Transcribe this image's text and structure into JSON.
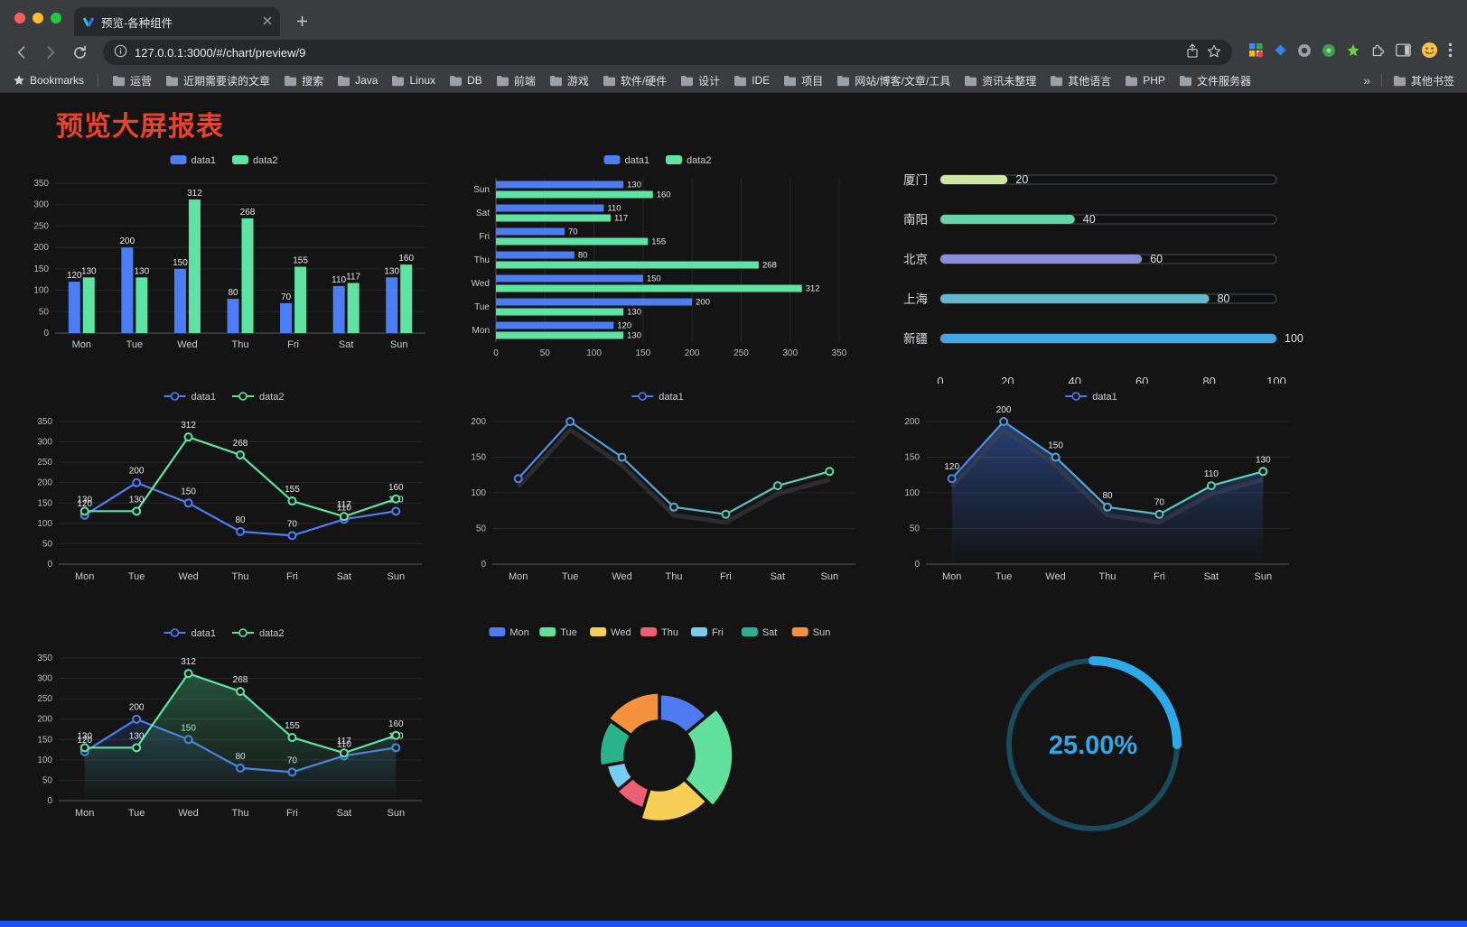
{
  "browser": {
    "tab": {
      "title": "预览-各种组件"
    },
    "url": "127.0.0.1:3000/#/chart/preview/9",
    "bookmarks_bar": {
      "label": "Bookmarks",
      "folders": [
        "运营",
        "近期需要读的文章",
        "搜索",
        "Java",
        "Linux",
        "DB",
        "前端",
        "游戏",
        "软件/硬件",
        "设计",
        "IDE",
        "项目",
        "网站/博客/文章/工具",
        "资讯未整理",
        "其他语言",
        "PHP",
        "文件服务器"
      ],
      "overflow_chevron": "»",
      "other_bookmarks": "其他书签"
    }
  },
  "page": {
    "title": "预览大屏报表",
    "accent_red": "#e8432d",
    "background": "#141414",
    "footer_color": "#1b55f7"
  },
  "chart_data": [
    {
      "type": "bar",
      "categories": [
        "Mon",
        "Tue",
        "Wed",
        "Thu",
        "Fri",
        "Sat",
        "Sun"
      ],
      "series": [
        {
          "name": "data1",
          "color": "#4d7df2",
          "values": [
            120,
            200,
            150,
            80,
            70,
            110,
            130
          ]
        },
        {
          "name": "data2",
          "color": "#5ee3a2",
          "values": [
            130,
            130,
            312,
            268,
            155,
            117,
            160
          ]
        }
      ],
      "ylim": [
        0,
        350
      ],
      "ytick_step": 50,
      "show_labels": true
    },
    {
      "type": "hbar",
      "categories": [
        "Mon",
        "Tue",
        "Wed",
        "Thu",
        "Fri",
        "Sat",
        "Sun"
      ],
      "series": [
        {
          "name": "data1",
          "color": "#4d7df2",
          "values": [
            120,
            200,
            150,
            80,
            70,
            110,
            130
          ]
        },
        {
          "name": "data2",
          "color": "#5ee3a2",
          "values": [
            130,
            130,
            312,
            268,
            155,
            117,
            160
          ]
        }
      ],
      "xlim": [
        0,
        350
      ],
      "xtick_step": 50,
      "show_labels": true
    },
    {
      "type": "progress",
      "max": 100,
      "axis_ticks": [
        0,
        20,
        40,
        60,
        80,
        100
      ],
      "items": [
        {
          "label": "厦门",
          "value": 20,
          "color": "#cfe7a6"
        },
        {
          "label": "南阳",
          "value": 40,
          "color": "#67d3a8"
        },
        {
          "label": "北京",
          "value": 60,
          "color": "#8b8fd9"
        },
        {
          "label": "上海",
          "value": 80,
          "color": "#62b9cc"
        },
        {
          "label": "新疆",
          "value": 100,
          "color": "#41a6e1"
        }
      ]
    },
    {
      "type": "line",
      "categories": [
        "Mon",
        "Tue",
        "Wed",
        "Thu",
        "Fri",
        "Sat",
        "Sun"
      ],
      "series": [
        {
          "name": "data1",
          "color": "#4d7df2",
          "values": [
            120,
            200,
            150,
            80,
            70,
            110,
            130
          ]
        },
        {
          "name": "data2",
          "color": "#5ee3a2",
          "values": [
            130,
            130,
            312,
            268,
            155,
            117,
            160
          ]
        }
      ],
      "ylim": [
        0,
        350
      ],
      "ytick_step": 50,
      "show_labels": true
    },
    {
      "type": "line",
      "categories": [
        "Mon",
        "Tue",
        "Wed",
        "Thu",
        "Fri",
        "Sat",
        "Sun"
      ],
      "series": [
        {
          "name": "data1",
          "color": "#4d7df2",
          "gradient": [
            "#4d7df2",
            "#5ee3a2"
          ],
          "values": [
            120,
            200,
            150,
            80,
            70,
            110,
            130
          ]
        }
      ],
      "ylim": [
        0,
        200
      ],
      "ytick_step": 50,
      "show_labels": false,
      "shadow": true
    },
    {
      "type": "line",
      "categories": [
        "Mon",
        "Tue",
        "Wed",
        "Thu",
        "Fri",
        "Sat",
        "Sun"
      ],
      "series": [
        {
          "name": "data1",
          "color": "#4d7df2",
          "gradient": [
            "#4d7df2",
            "#5ee3a2"
          ],
          "area_color": "#3b74e8",
          "area_opacity": 0.45,
          "values": [
            120,
            200,
            150,
            80,
            70,
            110,
            130
          ]
        }
      ],
      "ylim": [
        0,
        200
      ],
      "ytick_step": 50,
      "show_labels": true,
      "shadow": true
    },
    {
      "type": "line",
      "categories": [
        "Mon",
        "Tue",
        "Wed",
        "Thu",
        "Fri",
        "Sat",
        "Sun"
      ],
      "series": [
        {
          "name": "data1",
          "color": "#4d7df2",
          "area_color": "#4d7df2",
          "area_opacity": 0.18,
          "values": [
            120,
            200,
            150,
            80,
            70,
            110,
            130
          ]
        },
        {
          "name": "data2",
          "color": "#5ee3a2",
          "area_color": "#3fae77",
          "area_opacity": 0.4,
          "values": [
            130,
            130,
            312,
            268,
            155,
            117,
            160
          ]
        }
      ],
      "ylim": [
        0,
        350
      ],
      "ytick_step": 50,
      "show_labels": true
    },
    {
      "type": "donut",
      "items": [
        {
          "label": "Mon",
          "value": 120,
          "color": "#4e7cf0"
        },
        {
          "label": "Tue",
          "value": 200,
          "color": "#63e09e"
        },
        {
          "label": "Wed",
          "value": 150,
          "color": "#f7cf54"
        },
        {
          "label": "Thu",
          "value": 80,
          "color": "#ee5e74"
        },
        {
          "label": "Fri",
          "value": 70,
          "color": "#79cdf1"
        },
        {
          "label": "Sat",
          "value": 110,
          "color": "#2ab28b"
        },
        {
          "label": "Sun",
          "value": 130,
          "color": "#f5923e"
        }
      ]
    },
    {
      "type": "gauge",
      "value": 25,
      "label": "25.00%",
      "color": "#2ea9e8",
      "track_color": "#1a4a5c"
    }
  ]
}
